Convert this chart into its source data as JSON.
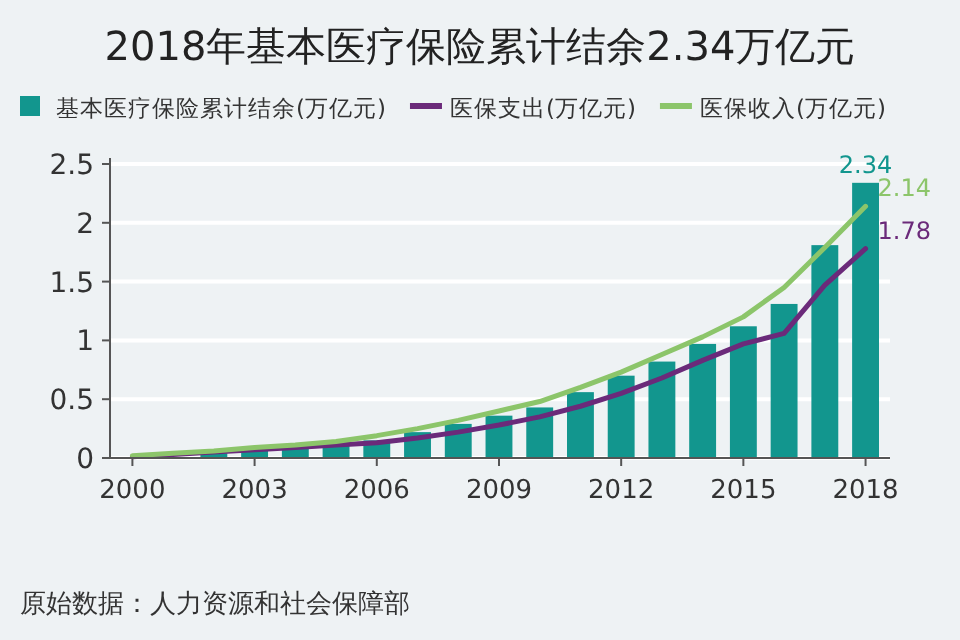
{
  "chart_data": {
    "type": "bar",
    "title": "2018年基本医疗保险累计结余2.34万亿元",
    "x": [
      2000,
      2001,
      2002,
      2003,
      2004,
      2005,
      2006,
      2007,
      2008,
      2009,
      2010,
      2011,
      2012,
      2013,
      2014,
      2015,
      2016,
      2017,
      2018
    ],
    "xlim": [
      1999.45,
      2018.6
    ],
    "xticks": [
      2000,
      2003,
      2006,
      2009,
      2012,
      2015,
      2018
    ],
    "ylim": [
      0,
      2.5
    ],
    "yticks": [
      0,
      0.5,
      1,
      1.5,
      2,
      2.5
    ],
    "grid": "y",
    "legend": "top",
    "series": [
      {
        "name": "基本医疗保险累计结余(万亿元)",
        "color": "#12968e",
        "values": [
          null,
          null,
          0.04,
          0.06,
          0.09,
          0.12,
          0.15,
          0.22,
          0.29,
          0.36,
          0.43,
          0.56,
          0.7,
          0.82,
          0.97,
          1.12,
          1.31,
          1.81,
          2.34
        ],
        "value_labels": [
          null,
          null,
          null,
          null,
          null,
          null,
          null,
          null,
          null,
          null,
          null,
          null,
          null,
          null,
          null,
          null,
          null,
          null,
          "2.34"
        ]
      },
      {
        "name": "医保支出(万亿元)",
        "type": "line",
        "color": "#6b2a7a",
        "values": [
          0.01,
          0.03,
          0.05,
          0.07,
          0.09,
          0.11,
          0.13,
          0.17,
          0.22,
          0.28,
          0.35,
          0.44,
          0.55,
          0.68,
          0.83,
          0.97,
          1.06,
          1.47,
          1.78
        ],
        "value_labels": [
          null,
          null,
          null,
          null,
          null,
          null,
          null,
          null,
          null,
          null,
          null,
          null,
          null,
          null,
          null,
          null,
          null,
          null,
          "1.78"
        ]
      },
      {
        "name": "医保收入(万亿元)",
        "type": "line",
        "color": "#8cc56a",
        "values": [
          0.02,
          0.04,
          0.06,
          0.09,
          0.11,
          0.14,
          0.19,
          0.25,
          0.32,
          0.4,
          0.48,
          0.6,
          0.73,
          0.88,
          1.03,
          1.2,
          1.45,
          1.79,
          2.14
        ],
        "value_labels": [
          null,
          null,
          null,
          null,
          null,
          null,
          null,
          null,
          null,
          null,
          null,
          null,
          null,
          null,
          null,
          null,
          null,
          null,
          "2.14"
        ]
      }
    ],
    "annotations": [
      "原始数据：人力资源和社会保障部"
    ]
  }
}
